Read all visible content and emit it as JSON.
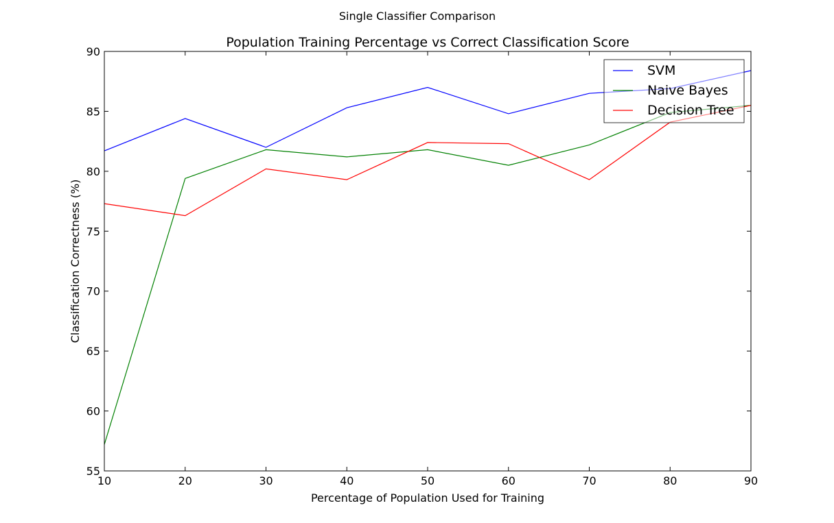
{
  "chart_data": {
    "type": "line",
    "suptitle": "Single Classifier Comparison",
    "title": "Population Training Percentage vs Correct Classification Score",
    "xlabel": "Percentage of Population Used for Training",
    "ylabel": "Classification Correctness (%)",
    "xlim": [
      10,
      90
    ],
    "ylim": [
      55,
      90
    ],
    "x": [
      10,
      20,
      30,
      40,
      50,
      60,
      70,
      80,
      90
    ],
    "xticks": [
      "10",
      "20",
      "30",
      "40",
      "50",
      "60",
      "70",
      "80",
      "90"
    ],
    "yticks": [
      "55",
      "60",
      "65",
      "70",
      "75",
      "80",
      "85",
      "90"
    ],
    "grid": false,
    "legend_position": "top-right",
    "series": [
      {
        "name": "SVM",
        "color": "#0000ff",
        "values": [
          81.7,
          84.4,
          82.0,
          85.3,
          87.0,
          84.8,
          86.5,
          86.9,
          88.4
        ]
      },
      {
        "name": "Naive Bayes",
        "color": "#008000",
        "values": [
          57.2,
          79.4,
          81.8,
          81.2,
          81.8,
          80.5,
          82.2,
          84.9,
          85.5
        ]
      },
      {
        "name": "Decision Tree",
        "color": "#ff0000",
        "values": [
          77.3,
          76.3,
          80.2,
          79.3,
          82.4,
          82.3,
          79.3,
          84.1,
          85.5
        ]
      }
    ]
  }
}
